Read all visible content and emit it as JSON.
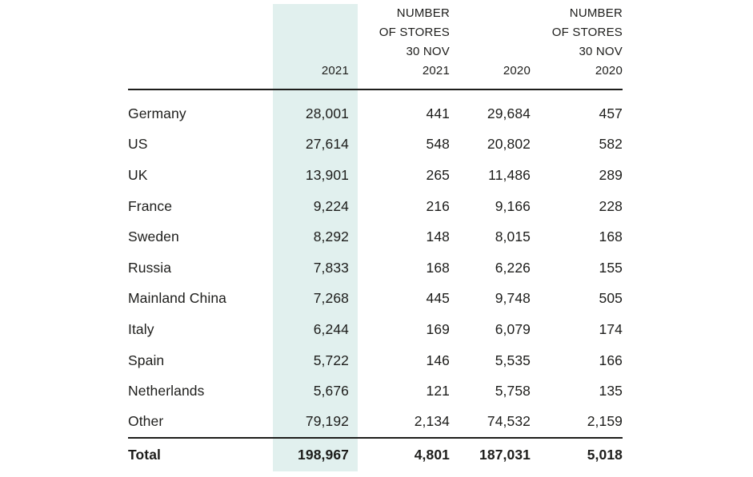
{
  "theme": {
    "highlight_column_bg": "#e1f0ee",
    "rule_color": "#1d1d1b",
    "text_color": "#1d1d1b",
    "page_bg": "#ffffff"
  },
  "table": {
    "headers": {
      "market": "",
      "sales_2021": "2021",
      "stores_2021_lines": [
        "NUMBER",
        "OF STORES",
        "30 NOV",
        "2021"
      ],
      "sales_2020": "2020",
      "stores_2020_lines": [
        "NUMBER",
        "OF STORES",
        "30 NOV",
        "2020"
      ]
    },
    "rows": [
      {
        "country": "Germany",
        "sales_2021": "28,001",
        "stores_2021": "441",
        "sales_2020": "29,684",
        "stores_2020": "457"
      },
      {
        "country": "US",
        "sales_2021": "27,614",
        "stores_2021": "548",
        "sales_2020": "20,802",
        "stores_2020": "582"
      },
      {
        "country": "UK",
        "sales_2021": "13,901",
        "stores_2021": "265",
        "sales_2020": "11,486",
        "stores_2020": "289"
      },
      {
        "country": "France",
        "sales_2021": "9,224",
        "stores_2021": "216",
        "sales_2020": "9,166",
        "stores_2020": "228"
      },
      {
        "country": "Sweden",
        "sales_2021": "8,292",
        "stores_2021": "148",
        "sales_2020": "8,015",
        "stores_2020": "168"
      },
      {
        "country": "Russia",
        "sales_2021": "7,833",
        "stores_2021": "168",
        "sales_2020": "6,226",
        "stores_2020": "155"
      },
      {
        "country": "Mainland China",
        "sales_2021": "7,268",
        "stores_2021": "445",
        "sales_2020": "9,748",
        "stores_2020": "505"
      },
      {
        "country": "Italy",
        "sales_2021": "6,244",
        "stores_2021": "169",
        "sales_2020": "6,079",
        "stores_2020": "174"
      },
      {
        "country": "Spain",
        "sales_2021": "5,722",
        "stores_2021": "146",
        "sales_2020": "5,535",
        "stores_2020": "166"
      },
      {
        "country": "Netherlands",
        "sales_2021": "5,676",
        "stores_2021": "121",
        "sales_2020": "5,758",
        "stores_2020": "135"
      },
      {
        "country": "Other",
        "sales_2021": "79,192",
        "stores_2021": "2,134",
        "sales_2020": "74,532",
        "stores_2020": "2,159"
      }
    ],
    "total": {
      "label": "Total",
      "sales_2021": "198,967",
      "stores_2021": "4,801",
      "sales_2020": "187,031",
      "stores_2020": "5,018"
    }
  }
}
